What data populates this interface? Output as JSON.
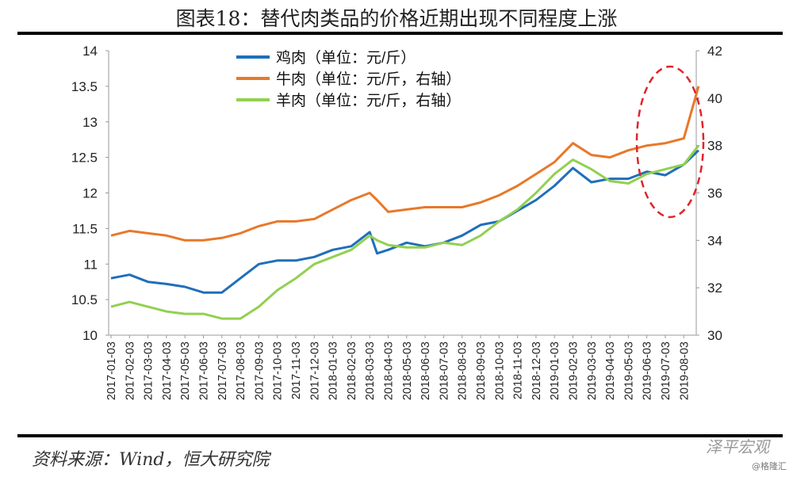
{
  "title": "图表18：替代肉类品的价格近期出现不同程度上涨",
  "source": "资料来源：Wind，恒大研究院",
  "watermark": "泽平宏观",
  "watermark2": "@格隆汇",
  "chart_data": {
    "type": "line",
    "x_tick_labels": [
      "2017-01-03",
      "2017-02-03",
      "2017-03-03",
      "2017-04-03",
      "2017-05-03",
      "2017-06-03",
      "2017-07-03",
      "2017-08-03",
      "2017-09-03",
      "2017-10-03",
      "2017-11-03",
      "2017-12-03",
      "2018-01-03",
      "2018-02-03",
      "2018-03-03",
      "2018-04-03",
      "2018-05-03",
      "2018-06-03",
      "2018-07-03",
      "2018-08-03",
      "2018-09-03",
      "2018-10-03",
      "2018-11-03",
      "2018-12-03",
      "2019-01-03",
      "2019-02-03",
      "2019-03-03",
      "2019-04-03",
      "2019-05-03",
      "2019-06-03",
      "2019-07-03",
      "2019-08-03"
    ],
    "x": [
      0,
      1,
      2,
      3,
      4,
      5,
      6,
      7,
      8,
      9,
      10,
      11,
      12,
      13,
      14,
      14.4,
      15,
      16,
      17,
      18,
      19,
      20,
      21,
      22,
      23,
      24,
      25,
      26,
      27,
      28,
      29,
      30,
      31,
      31.8
    ],
    "left_axis": {
      "ylim": [
        10,
        14
      ],
      "ticks": [
        "10",
        "10.5",
        "11",
        "11.5",
        "12",
        "12.5",
        "13",
        "13.5",
        "14"
      ]
    },
    "right_axis": {
      "ylim": [
        30,
        42
      ],
      "ticks": [
        "30",
        "32",
        "34",
        "36",
        "38",
        "40",
        "42"
      ]
    },
    "series": [
      {
        "name": "鸡肉（单位：元/斤）",
        "axis": "left",
        "color": "#1f6fba",
        "values": [
          10.8,
          10.85,
          10.75,
          10.72,
          10.68,
          10.6,
          10.6,
          10.8,
          11.0,
          11.05,
          11.05,
          11.1,
          11.2,
          11.25,
          11.45,
          11.15,
          11.2,
          11.3,
          11.25,
          11.3,
          11.4,
          11.55,
          11.6,
          11.75,
          11.9,
          12.1,
          12.35,
          12.15,
          12.2,
          12.2,
          12.3,
          12.25,
          12.4,
          12.6
        ]
      },
      {
        "name": "牛肉（单位：元/斤，右轴）",
        "axis": "right",
        "color": "#e8782a",
        "values": [
          34.2,
          34.4,
          34.3,
          34.2,
          34.0,
          34.0,
          34.1,
          34.3,
          34.6,
          34.8,
          34.8,
          34.9,
          35.3,
          35.7,
          36.0,
          35.7,
          35.2,
          35.3,
          35.4,
          35.4,
          35.4,
          35.6,
          35.9,
          36.3,
          36.8,
          37.3,
          38.1,
          37.6,
          37.5,
          37.8,
          38.0,
          38.1,
          38.3,
          40.5
        ]
      },
      {
        "name": "羊肉（单位：元/斤，右轴）",
        "axis": "right",
        "color": "#92d050",
        "values": [
          31.2,
          31.4,
          31.2,
          31.0,
          30.9,
          30.9,
          30.7,
          30.7,
          31.2,
          31.9,
          32.4,
          33.0,
          33.3,
          33.6,
          34.2,
          34.0,
          33.8,
          33.7,
          33.7,
          33.9,
          33.8,
          34.2,
          34.8,
          35.3,
          36.0,
          36.8,
          37.4,
          37.0,
          36.5,
          36.4,
          36.8,
          37.0,
          37.2,
          38.0
        ]
      }
    ],
    "annotation": "red dashed ellipse highlighting recent rise",
    "legend": "top-left",
    "grid": false
  }
}
